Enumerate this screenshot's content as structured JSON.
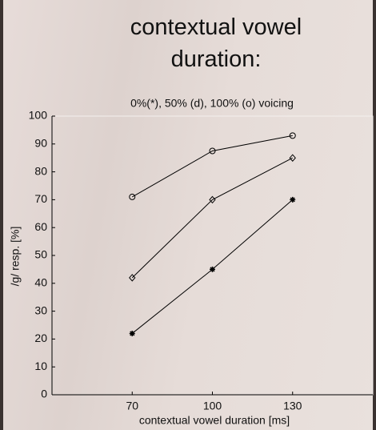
{
  "chart_data": {
    "type": "line",
    "title": "contextual vowel duration:",
    "subtitle": "0%(*), 50% (d), 100% (o) voicing",
    "x_label": "contextual vowel duration [ms]",
    "y_label": "/g/ resp. [%]",
    "x": [
      70,
      100,
      130
    ],
    "series": [
      {
        "marker": "o",
        "color": "#000000",
        "values": [
          71,
          87.5,
          93
        ]
      },
      {
        "marker": "d",
        "color": "#000000",
        "values": [
          42,
          70,
          85
        ]
      },
      {
        "marker": "*",
        "color": "#000000",
        "values": [
          22,
          45,
          70
        ]
      }
    ],
    "xlim": [
      40,
      160
    ],
    "xticks": [
      70,
      100,
      130
    ],
    "ylim": [
      0,
      100
    ],
    "yticks": [
      0,
      10,
      20,
      30,
      40,
      50,
      60,
      70,
      80,
      90,
      100
    ],
    "grid": false
  }
}
